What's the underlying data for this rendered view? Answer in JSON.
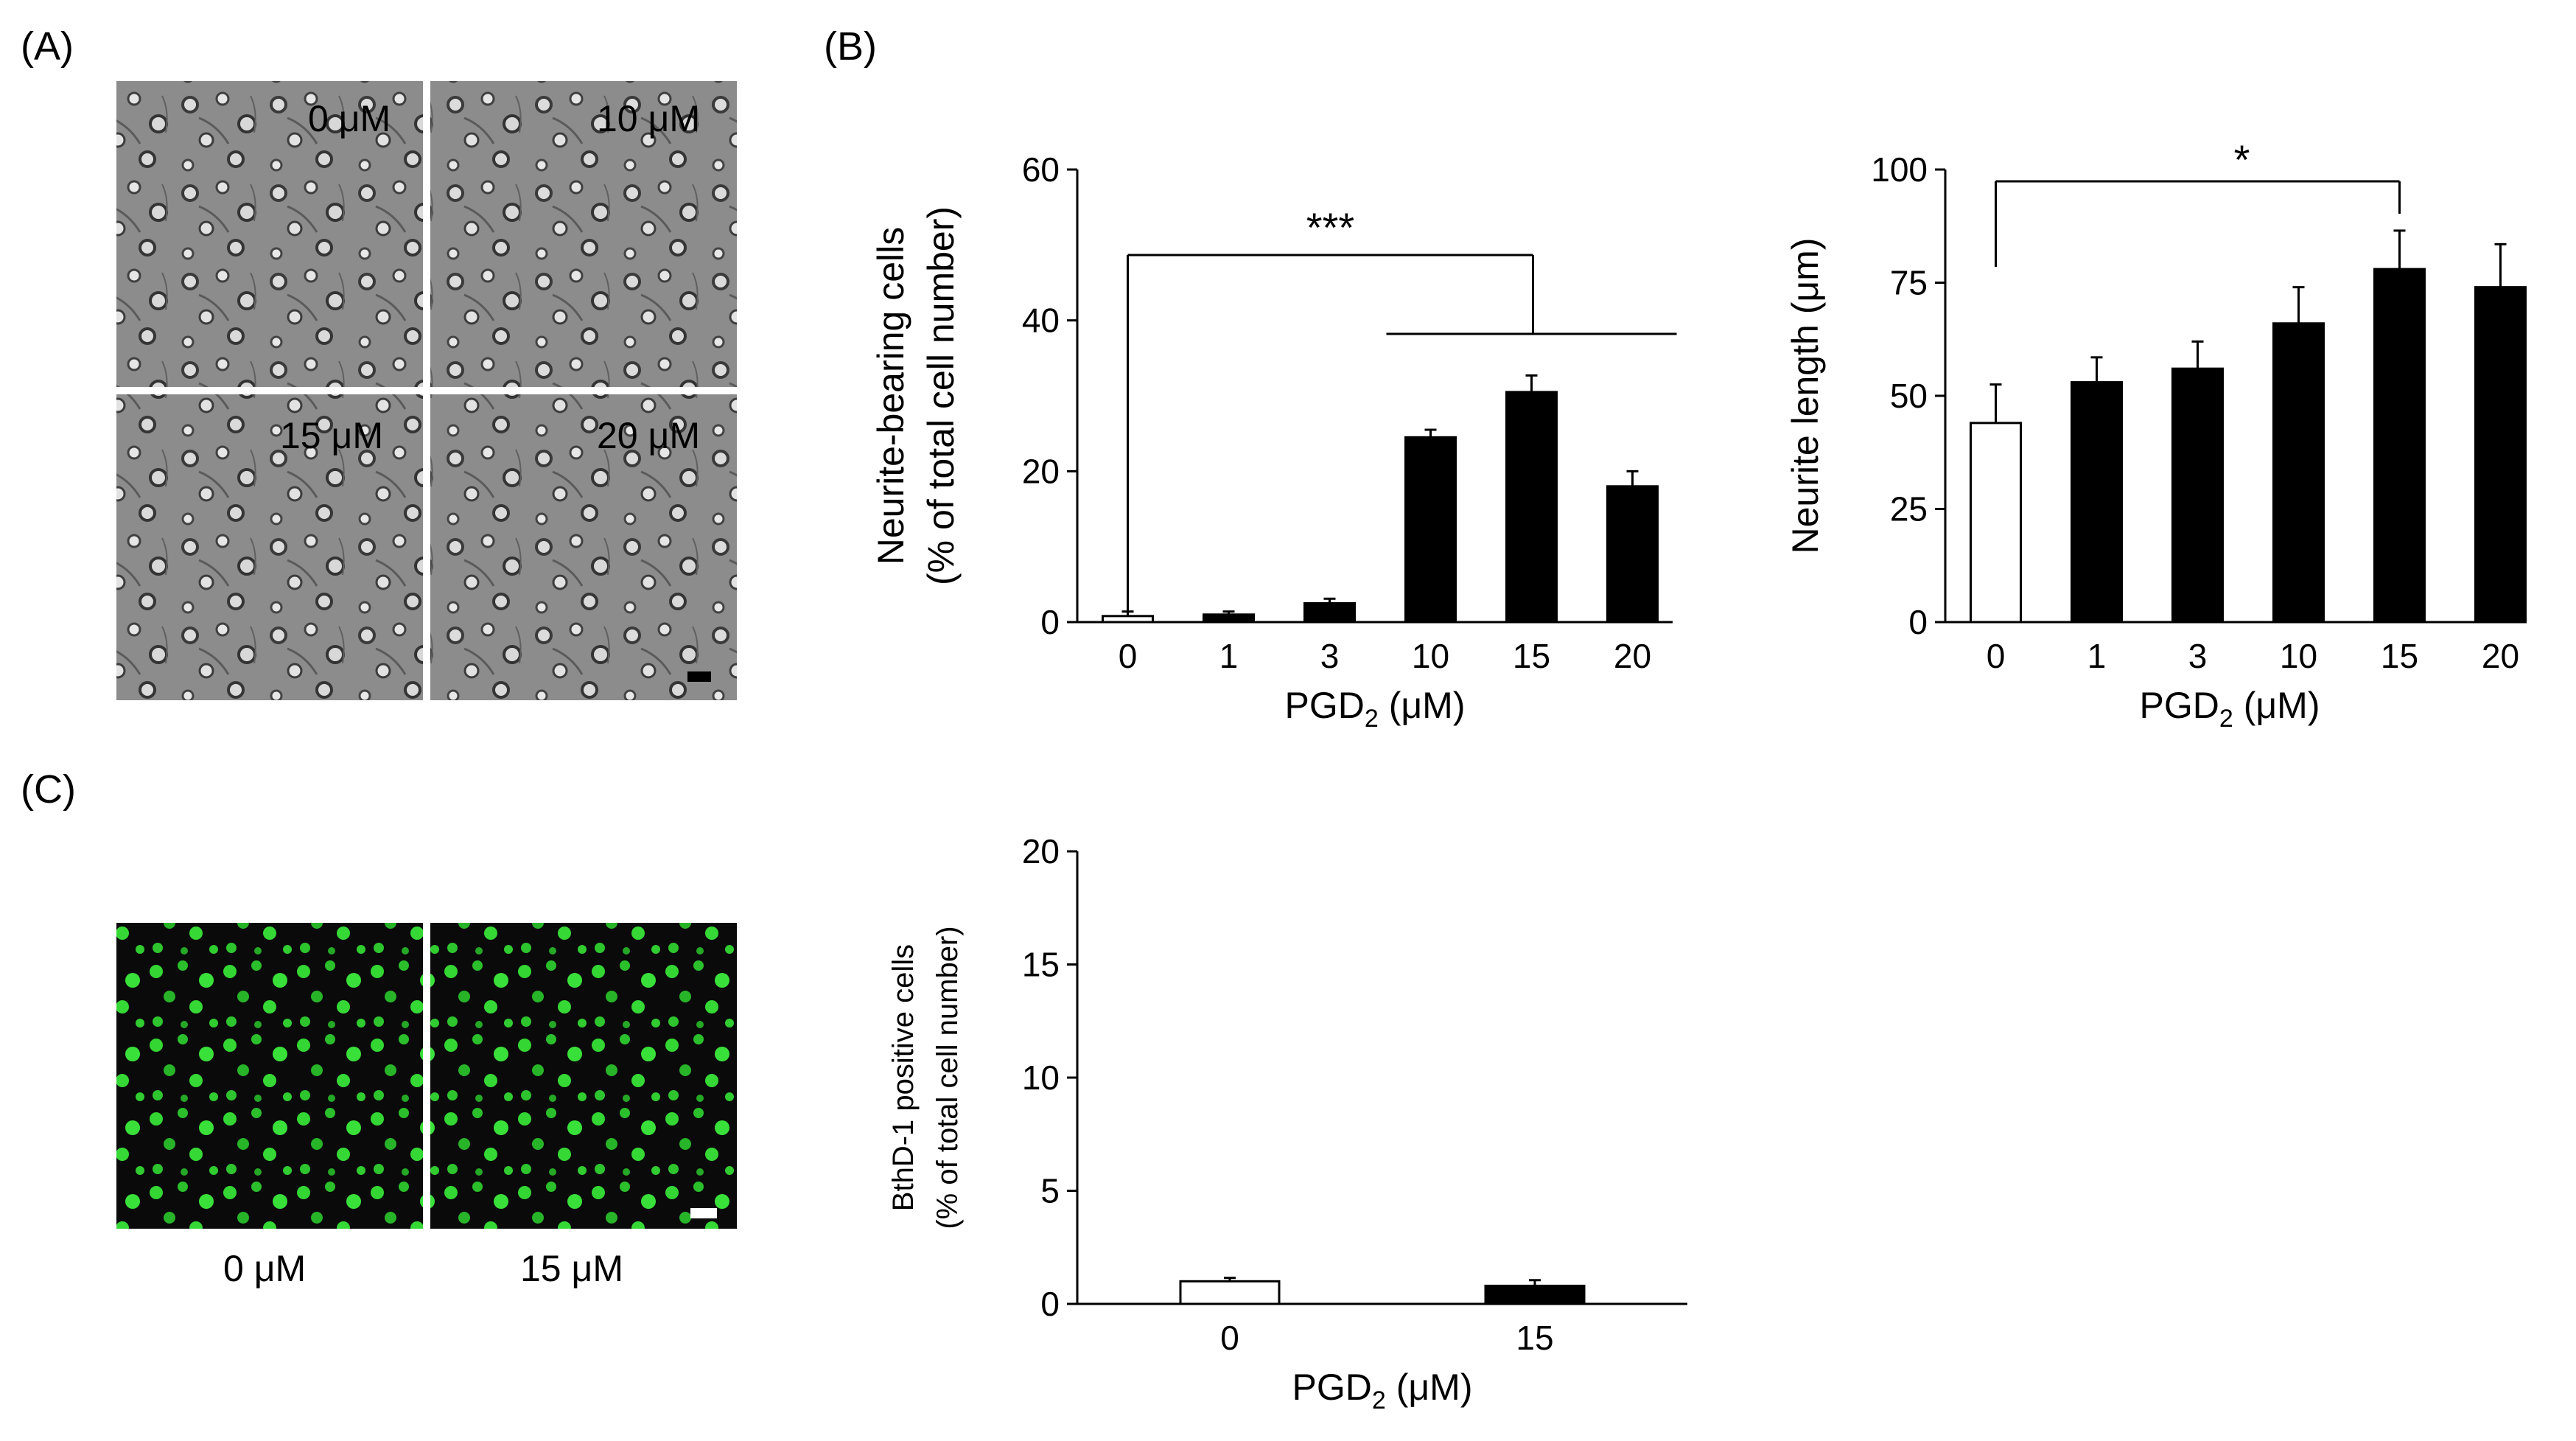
{
  "panels": {
    "a": {
      "label": "(A)",
      "images": [
        "0 μM",
        "10 μM",
        "15 μM",
        "20 μM"
      ]
    },
    "b": {
      "label": "(B)"
    },
    "c": {
      "label": "(C)",
      "images": [
        "0 μM",
        "15 μM"
      ]
    }
  },
  "colors": {
    "control_bar": "#ffffff",
    "treated_bar": "#000000",
    "phase_contrast_bg": "#8a8a8a",
    "fluorescence_bg": "#0a0a0a",
    "fluorescence_cell": "#33d633"
  },
  "chart_data": [
    {
      "id": "neurite-bearing",
      "type": "bar",
      "categories": [
        "0",
        "1",
        "3",
        "10",
        "15",
        "20"
      ],
      "values": [
        0.8,
        1.0,
        2.5,
        24.5,
        30.5,
        18.0
      ],
      "errors": [
        0.6,
        0.4,
        0.6,
        1.0,
        2.2,
        2.0
      ],
      "fill": [
        "white",
        "black",
        "black",
        "black",
        "black",
        "black"
      ],
      "ylabel_line1": "Neurite-bearing cells",
      "ylabel_line2": "(% of total cell number)",
      "xlabel_main": "PGD",
      "xlabel_sub": "2",
      "xlabel_unit": " (μM)",
      "ylim": [
        0,
        60
      ],
      "yticks": [
        0,
        20,
        40,
        60
      ],
      "significance": {
        "text": "***"
      }
    },
    {
      "id": "neurite-length",
      "type": "bar",
      "categories": [
        "0",
        "1",
        "3",
        "10",
        "15",
        "20"
      ],
      "values": [
        44,
        53,
        56,
        66,
        78,
        74
      ],
      "errors": [
        8.5,
        5.5,
        6.0,
        8.0,
        8.5,
        9.5
      ],
      "fill": [
        "white",
        "black",
        "black",
        "black",
        "black",
        "black"
      ],
      "ylabel_line1": "Neurite length (μm)",
      "xlabel_main": "PGD",
      "xlabel_sub": "2",
      "xlabel_unit": " (μM)",
      "ylim": [
        0,
        100
      ],
      "yticks": [
        0,
        25,
        50,
        75,
        100
      ],
      "significance": {
        "text": "*"
      }
    },
    {
      "id": "bthd-positive",
      "type": "bar",
      "categories": [
        "0",
        "15"
      ],
      "values": [
        1.0,
        0.8
      ],
      "errors": [
        0.15,
        0.25
      ],
      "fill": [
        "white",
        "black"
      ],
      "ylabel_line1": "BthD-1  positive  cells",
      "ylabel_line2": "(% of total  cell number)",
      "xlabel_main": "PGD",
      "xlabel_sub": "2",
      "xlabel_unit": " (μM)",
      "ylim": [
        0,
        20
      ],
      "yticks": [
        0,
        5,
        10,
        15,
        20
      ]
    }
  ]
}
